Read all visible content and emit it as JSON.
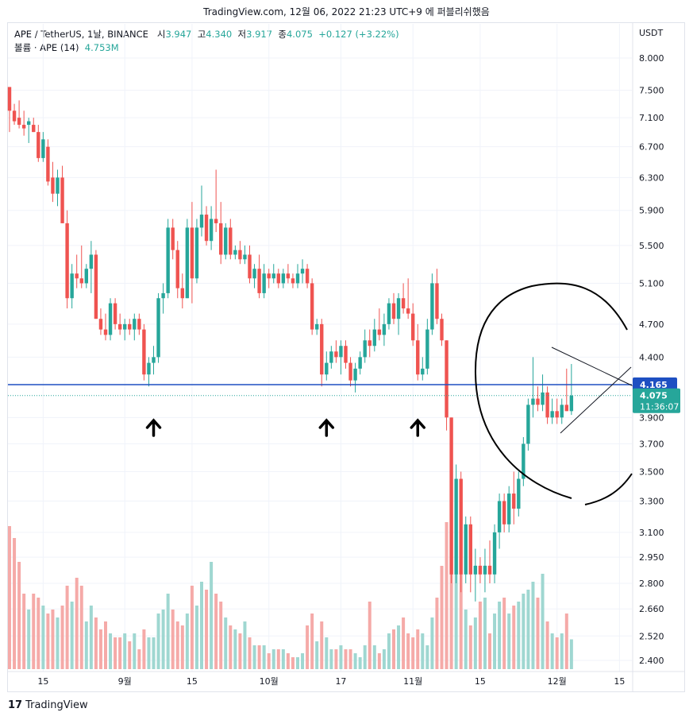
{
  "attribution": "TradingView.com, 12월 06, 2022 21:23 UTC+9 에 퍼블리쉬했음",
  "legend": {
    "symbol": "APE / TetherUS, 1날, BINANCE",
    "open_label": "시",
    "open": "3.947",
    "high_label": "고",
    "high": "4.340",
    "low_label": "저",
    "low": "3.917",
    "close_label": "종",
    "close": "4.075",
    "change": "+0.127 (+3.22%)",
    "volume_label": "볼륨 · APE (14)",
    "volume": "4.753M"
  },
  "footer": {
    "logo_mark": "17",
    "brand": "TradingView"
  },
  "chart_data": {
    "type": "candlestick",
    "symbol": "APE / TetherUS",
    "timeframe": "1날",
    "exchange": "BINANCE",
    "currency": "USDT",
    "price_axis": {
      "scale": "log",
      "ticks": [
        "8.000",
        "7.500",
        "7.100",
        "6.700",
        "6.300",
        "5.900",
        "5.500",
        "5.100",
        "4.700",
        "4.400",
        "4.165",
        "4.075",
        "3.900",
        "3.700",
        "3.500",
        "3.300",
        "3.100",
        "2.950",
        "2.800",
        "2.660",
        "2.520",
        "2.400"
      ]
    },
    "time_axis": {
      "ticks": [
        "15",
        "9월",
        "15",
        "10월",
        "17",
        "11월",
        "15",
        "12월",
        "15"
      ]
    },
    "colors": {
      "up": "#26a69a",
      "down": "#ef5350",
      "vol_up": "#9fd7d1",
      "vol_down": "#f5aaa8",
      "hline": "#1e4fc2"
    },
    "horizontal_line": {
      "price": 4.165,
      "label": "4.165"
    },
    "last_price": {
      "price": 4.075,
      "label": "4.075",
      "countdown": "11:36:07"
    },
    "annotations": [
      "up-arrow",
      "up-arrow",
      "up-arrow",
      "symmetrical-triangle",
      "circle"
    ],
    "candles": [
      [
        7.55,
        7.55,
        6.9,
        7.2,
        3.6
      ],
      [
        7.2,
        7.3,
        7.0,
        7.05,
        3.3
      ],
      [
        7.1,
        7.35,
        6.95,
        7.0,
        2.7
      ],
      [
        7.0,
        7.2,
        6.85,
        6.95,
        1.9
      ],
      [
        7.0,
        7.1,
        6.75,
        7.05,
        1.5
      ],
      [
        7.0,
        7.1,
        6.9,
        6.9,
        1.9
      ],
      [
        6.9,
        7.0,
        6.5,
        6.55,
        1.8
      ],
      [
        6.55,
        6.9,
        6.5,
        6.8,
        1.6
      ],
      [
        6.7,
        6.8,
        6.2,
        6.25,
        1.4
      ],
      [
        6.3,
        6.5,
        6.0,
        6.1,
        1.5
      ],
      [
        6.1,
        6.4,
        5.95,
        6.3,
        1.3
      ],
      [
        6.3,
        6.45,
        5.75,
        5.75,
        1.6
      ],
      [
        5.75,
        5.9,
        4.85,
        4.95,
        2.1
      ],
      [
        4.95,
        5.3,
        4.85,
        5.2,
        1.7
      ],
      [
        5.2,
        5.4,
        5.05,
        5.15,
        2.3
      ],
      [
        5.15,
        5.5,
        5.05,
        5.1,
        2.1
      ],
      [
        5.1,
        5.3,
        5.05,
        5.25,
        1.2
      ],
      [
        5.25,
        5.55,
        5.0,
        5.4,
        1.6
      ],
      [
        5.4,
        5.45,
        4.75,
        4.75,
        1.3
      ],
      [
        4.75,
        4.85,
        4.6,
        4.65,
        1.0
      ],
      [
        4.65,
        4.8,
        4.55,
        4.6,
        1.2
      ],
      [
        4.6,
        4.95,
        4.55,
        4.9,
        0.9
      ],
      [
        4.9,
        4.95,
        4.65,
        4.7,
        0.8
      ],
      [
        4.7,
        4.8,
        4.6,
        4.65,
        0.8
      ],
      [
        4.65,
        4.75,
        4.55,
        4.7,
        0.9
      ],
      [
        4.7,
        4.75,
        4.6,
        4.65,
        0.7
      ],
      [
        4.65,
        4.8,
        4.55,
        4.75,
        0.9
      ],
      [
        4.75,
        4.8,
        4.6,
        4.65,
        0.5
      ],
      [
        4.65,
        4.7,
        4.2,
        4.25,
        1.0
      ],
      [
        4.25,
        4.4,
        4.15,
        4.35,
        0.8
      ],
      [
        4.35,
        4.5,
        4.25,
        4.4,
        0.8
      ],
      [
        4.4,
        5.0,
        4.35,
        4.95,
        1.4
      ],
      [
        4.95,
        5.1,
        4.8,
        5.0,
        1.5
      ],
      [
        5.0,
        5.8,
        4.95,
        5.7,
        1.9
      ],
      [
        5.7,
        5.8,
        5.35,
        5.45,
        1.5
      ],
      [
        5.45,
        5.55,
        4.95,
        5.05,
        1.2
      ],
      [
        5.05,
        5.2,
        4.85,
        4.95,
        1.1
      ],
      [
        4.95,
        5.8,
        4.95,
        5.7,
        1.4
      ],
      [
        5.7,
        6.0,
        4.9,
        5.15,
        2.1
      ],
      [
        5.15,
        5.8,
        5.1,
        5.7,
        1.6
      ],
      [
        5.7,
        6.2,
        5.6,
        5.85,
        2.2
      ],
      [
        5.85,
        5.95,
        5.5,
        5.55,
        2.0
      ],
      [
        5.55,
        5.95,
        5.45,
        5.8,
        2.7
      ],
      [
        5.8,
        6.4,
        5.65,
        5.75,
        1.9
      ],
      [
        5.75,
        6.0,
        5.3,
        5.4,
        1.7
      ],
      [
        5.4,
        5.75,
        5.35,
        5.7,
        1.3
      ],
      [
        5.7,
        5.8,
        5.35,
        5.4,
        1.1
      ],
      [
        5.4,
        5.5,
        5.35,
        5.45,
        1.0
      ],
      [
        5.45,
        5.55,
        5.3,
        5.35,
        0.9
      ],
      [
        5.35,
        5.5,
        5.3,
        5.4,
        1.2
      ],
      [
        5.4,
        5.5,
        5.1,
        5.15,
        0.8
      ],
      [
        5.15,
        5.3,
        5.05,
        5.25,
        0.6
      ],
      [
        5.25,
        5.4,
        4.95,
        5.0,
        0.6
      ],
      [
        5.0,
        5.3,
        4.95,
        5.2,
        0.6
      ],
      [
        5.2,
        5.25,
        5.05,
        5.15,
        0.4
      ],
      [
        5.15,
        5.3,
        5.1,
        5.2,
        0.5
      ],
      [
        5.2,
        5.25,
        5.05,
        5.1,
        0.5
      ],
      [
        5.1,
        5.25,
        5.05,
        5.2,
        0.5
      ],
      [
        5.2,
        5.3,
        5.1,
        5.15,
        0.4
      ],
      [
        5.15,
        5.2,
        5.05,
        5.1,
        0.3
      ],
      [
        5.1,
        5.3,
        5.05,
        5.2,
        0.3
      ],
      [
        5.2,
        5.35,
        5.1,
        5.25,
        0.4
      ],
      [
        5.25,
        5.3,
        5.05,
        5.1,
        1.1
      ],
      [
        5.1,
        5.15,
        4.6,
        4.65,
        1.4
      ],
      [
        4.65,
        4.75,
        4.6,
        4.7,
        0.7
      ],
      [
        4.7,
        4.75,
        4.15,
        4.25,
        1.2
      ],
      [
        4.25,
        4.45,
        4.2,
        4.35,
        0.8
      ],
      [
        4.35,
        4.5,
        4.3,
        4.45,
        0.5
      ],
      [
        4.45,
        4.55,
        4.35,
        4.4,
        0.5
      ],
      [
        4.4,
        4.55,
        4.25,
        4.5,
        0.6
      ],
      [
        4.5,
        4.55,
        4.3,
        4.35,
        0.5
      ],
      [
        4.35,
        4.4,
        4.15,
        4.2,
        0.5
      ],
      [
        4.2,
        4.35,
        4.1,
        4.3,
        0.4
      ],
      [
        4.3,
        4.45,
        4.25,
        4.4,
        0.3
      ],
      [
        4.4,
        4.65,
        4.35,
        4.55,
        0.6
      ],
      [
        4.55,
        4.65,
        4.4,
        4.5,
        1.7
      ],
      [
        4.5,
        4.75,
        4.45,
        4.65,
        0.6
      ],
      [
        4.65,
        4.85,
        4.55,
        4.6,
        0.4
      ],
      [
        4.6,
        4.8,
        4.5,
        4.7,
        0.5
      ],
      [
        4.7,
        4.95,
        4.65,
        4.9,
        0.9
      ],
      [
        4.9,
        5.0,
        4.7,
        4.75,
        1.0
      ],
      [
        4.75,
        5.0,
        4.6,
        4.95,
        1.1
      ],
      [
        4.95,
        5.1,
        4.8,
        4.85,
        1.3
      ],
      [
        4.85,
        5.15,
        4.75,
        4.8,
        0.9
      ],
      [
        4.8,
        4.9,
        4.5,
        4.55,
        0.8
      ],
      [
        4.55,
        4.7,
        4.2,
        4.25,
        1.0
      ],
      [
        4.25,
        4.4,
        4.2,
        4.3,
        0.9
      ],
      [
        4.3,
        4.75,
        4.25,
        4.65,
        0.6
      ],
      [
        4.65,
        5.2,
        4.6,
        5.1,
        1.3
      ],
      [
        5.1,
        5.25,
        4.7,
        4.75,
        1.8
      ],
      [
        4.75,
        4.8,
        4.5,
        4.55,
        2.6
      ],
      [
        4.55,
        4.55,
        3.8,
        3.9,
        3.7
      ],
      [
        3.9,
        3.9,
        2.8,
        2.85,
        3.9
      ],
      [
        2.85,
        3.55,
        2.8,
        3.45,
        3.1
      ],
      [
        3.45,
        3.5,
        2.75,
        2.85,
        2.4
      ],
      [
        2.85,
        3.2,
        2.8,
        3.15,
        1.5
      ],
      [
        3.15,
        3.2,
        2.75,
        2.85,
        1.1
      ],
      [
        2.85,
        3.0,
        2.7,
        2.9,
        1.3
      ],
      [
        2.9,
        2.95,
        2.8,
        2.85,
        1.7
      ],
      [
        2.85,
        3.0,
        2.75,
        2.9,
        1.8
      ],
      [
        2.9,
        3.05,
        2.8,
        2.85,
        0.9
      ],
      [
        2.85,
        3.15,
        2.8,
        3.1,
        1.4
      ],
      [
        3.1,
        3.35,
        3.0,
        3.3,
        1.7
      ],
      [
        3.3,
        3.35,
        3.1,
        3.15,
        1.8
      ],
      [
        3.15,
        3.4,
        3.1,
        3.35,
        1.4
      ],
      [
        3.35,
        3.5,
        3.15,
        3.25,
        1.6
      ],
      [
        3.25,
        3.5,
        3.2,
        3.45,
        1.7
      ],
      [
        3.45,
        3.75,
        3.4,
        3.7,
        1.9
      ],
      [
        3.7,
        4.05,
        3.65,
        4.0,
        2.0
      ],
      [
        4.0,
        4.4,
        3.9,
        4.05,
        2.2
      ],
      [
        4.05,
        4.15,
        3.95,
        4.0,
        1.8
      ],
      [
        4.0,
        4.25,
        3.95,
        4.1,
        2.4
      ],
      [
        4.1,
        4.15,
        3.85,
        3.9,
        1.2
      ],
      [
        3.9,
        4.05,
        3.85,
        3.95,
        0.9
      ],
      [
        3.95,
        4.05,
        3.85,
        3.9,
        0.8
      ],
      [
        3.9,
        4.05,
        3.85,
        4.0,
        0.9
      ],
      [
        4.0,
        4.3,
        3.95,
        3.95,
        1.4
      ],
      [
        3.95,
        4.34,
        3.92,
        4.075,
        0.75
      ]
    ]
  }
}
